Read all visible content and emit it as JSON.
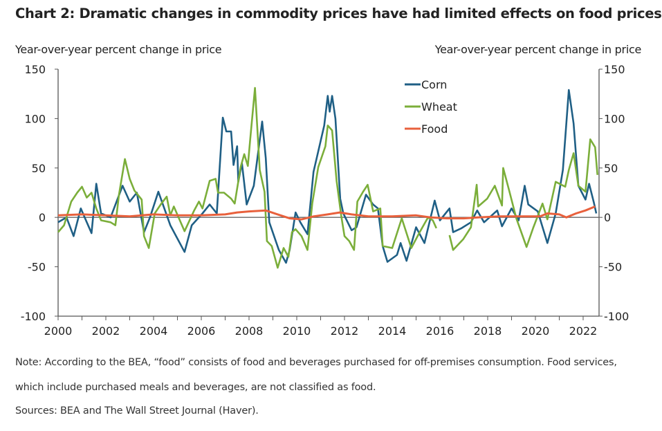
{
  "chart_data": {
    "type": "line",
    "title": "Chart 2: Dramatic changes in commodity prices have had limited effects on food prices",
    "ylabel_left": "Year-over-year percent change in price",
    "ylabel_right": "Year-over-year percent change in price",
    "xlabel": "",
    "ylim": [
      -100,
      150
    ],
    "yticks": [
      150,
      100,
      50,
      0,
      -50,
      -100
    ],
    "ytick_labels": [
      "150",
      "100",
      "50",
      "0",
      "-50",
      "-100"
    ],
    "xlim": [
      2000,
      2022.7
    ],
    "xtick_labels": [
      "2000",
      "2002",
      "2004",
      "2006",
      "2008",
      "2010",
      "2012",
      "2014",
      "2016",
      "2018",
      "2020",
      "2022"
    ],
    "legend_position": "top-center",
    "grid": false,
    "series": [
      {
        "name": "Corn",
        "color": "#1f5f85",
        "points": [
          [
            2000.0,
            -5
          ],
          [
            2000.35,
            0
          ],
          [
            2000.65,
            -19
          ],
          [
            2000.95,
            9
          ],
          [
            2001.4,
            -16
          ],
          [
            2001.6,
            34
          ],
          [
            2001.8,
            4
          ],
          [
            2002.2,
            0
          ],
          [
            2002.7,
            32
          ],
          [
            2003.0,
            16
          ],
          [
            2003.3,
            25
          ],
          [
            2003.6,
            -15
          ],
          [
            2003.85,
            0
          ],
          [
            2004.2,
            26
          ],
          [
            2004.7,
            -8
          ],
          [
            2005.3,
            -35
          ],
          [
            2005.6,
            -8
          ],
          [
            2006.05,
            4
          ],
          [
            2006.35,
            13
          ],
          [
            2006.65,
            4
          ],
          [
            2006.9,
            101
          ],
          [
            2007.05,
            87
          ],
          [
            2007.25,
            87
          ],
          [
            2007.35,
            53
          ],
          [
            2007.5,
            72
          ],
          [
            2007.55,
            36
          ],
          [
            2007.7,
            55
          ],
          [
            2007.9,
            13
          ],
          [
            2008.2,
            32
          ],
          [
            2008.55,
            97
          ],
          [
            2008.7,
            60
          ],
          [
            2008.85,
            -5
          ],
          [
            2009.25,
            -33
          ],
          [
            2009.55,
            -46
          ],
          [
            2009.7,
            -33
          ],
          [
            2009.95,
            5
          ],
          [
            2010.15,
            -5
          ],
          [
            2010.45,
            -17
          ],
          [
            2010.7,
            46
          ],
          [
            2011.15,
            93
          ],
          [
            2011.3,
            123
          ],
          [
            2011.38,
            107
          ],
          [
            2011.48,
            123
          ],
          [
            2011.62,
            100
          ],
          [
            2011.82,
            19
          ],
          [
            2011.95,
            4
          ],
          [
            2012.3,
            -13
          ],
          [
            2012.5,
            -10
          ],
          [
            2012.9,
            23
          ],
          [
            2013.2,
            13
          ],
          [
            2013.4,
            9
          ],
          [
            2013.6,
            -29
          ],
          [
            2013.8,
            -45
          ],
          [
            2014.2,
            -38
          ],
          [
            2014.35,
            -26
          ],
          [
            2014.6,
            -44
          ],
          [
            2015.0,
            -10
          ],
          [
            2015.35,
            -26
          ],
          [
            2015.78,
            17
          ],
          [
            2016.0,
            -3
          ],
          [
            2016.4,
            9
          ],
          [
            2016.55,
            -15
          ],
          [
            2016.9,
            -11
          ],
          [
            2017.3,
            -5
          ],
          [
            2017.56,
            7
          ],
          [
            2017.85,
            -5
          ],
          [
            2018.4,
            7
          ],
          [
            2018.6,
            -9
          ],
          [
            2019.0,
            9
          ],
          [
            2019.3,
            -3
          ],
          [
            2019.55,
            32
          ],
          [
            2019.7,
            13
          ],
          [
            2020.1,
            6
          ],
          [
            2020.5,
            -26
          ],
          [
            2020.85,
            4
          ],
          [
            2021.15,
            48
          ],
          [
            2021.4,
            129
          ],
          [
            2021.6,
            95
          ],
          [
            2021.8,
            32
          ],
          [
            2022.1,
            18
          ],
          [
            2022.25,
            34
          ],
          [
            2022.45,
            15
          ],
          [
            2022.55,
            4
          ]
        ]
      },
      {
        "name": "Wheat",
        "color": "#7bae3a",
        "points": [
          [
            2000.0,
            -15
          ],
          [
            2000.25,
            -8
          ],
          [
            2000.55,
            16
          ],
          [
            2000.8,
            25
          ],
          [
            2001.0,
            31
          ],
          [
            2001.2,
            20
          ],
          [
            2001.4,
            25
          ],
          [
            2001.6,
            9
          ],
          [
            2001.8,
            -3
          ],
          [
            2002.2,
            -5
          ],
          [
            2002.4,
            -8
          ],
          [
            2002.55,
            23
          ],
          [
            2002.8,
            59
          ],
          [
            2003.0,
            39
          ],
          [
            2003.2,
            27
          ],
          [
            2003.5,
            18
          ],
          [
            2003.6,
            -19
          ],
          [
            2003.8,
            -31
          ],
          [
            2004.05,
            4
          ],
          [
            2004.3,
            13
          ],
          [
            2004.55,
            21
          ],
          [
            2004.7,
            2
          ],
          [
            2004.85,
            11
          ],
          [
            2005.3,
            -14
          ],
          [
            2005.7,
            7
          ],
          [
            2005.9,
            16
          ],
          [
            2006.05,
            9
          ],
          [
            2006.35,
            37
          ],
          [
            2006.6,
            39
          ],
          [
            2006.7,
            25
          ],
          [
            2006.95,
            25
          ],
          [
            2007.25,
            19
          ],
          [
            2007.4,
            14
          ],
          [
            2007.65,
            51
          ],
          [
            2007.8,
            64
          ],
          [
            2007.95,
            52
          ],
          [
            2008.05,
            79
          ],
          [
            2008.25,
            131
          ],
          [
            2008.45,
            48
          ],
          [
            2008.65,
            26
          ],
          [
            2008.75,
            -24
          ],
          [
            2008.95,
            -29
          ],
          [
            2009.2,
            -51
          ],
          [
            2009.45,
            -31
          ],
          [
            2009.65,
            -40
          ],
          [
            2009.8,
            -15
          ],
          [
            2009.95,
            -12
          ],
          [
            2010.2,
            -19
          ],
          [
            2010.45,
            -33
          ],
          [
            2010.65,
            14
          ],
          [
            2010.9,
            51
          ],
          [
            2011.2,
            72
          ],
          [
            2011.3,
            93
          ],
          [
            2011.48,
            88
          ],
          [
            2011.67,
            37
          ],
          [
            2011.86,
            2
          ],
          [
            2012.0,
            -19
          ],
          [
            2012.2,
            -24
          ],
          [
            2012.4,
            -33
          ],
          [
            2012.54,
            16
          ],
          [
            2012.78,
            26
          ],
          [
            2012.97,
            33
          ],
          [
            2013.2,
            6
          ],
          [
            2013.5,
            9
          ],
          [
            2013.6,
            -29
          ],
          [
            2014.0,
            -31
          ],
          [
            2014.4,
            -1
          ],
          [
            2014.8,
            -31
          ],
          [
            2015.15,
            -15
          ],
          [
            2015.5,
            0
          ],
          [
            2015.7,
            -3
          ],
          [
            2015.85,
            -11
          ],
          null,
          [
            2016.4,
            -18
          ],
          [
            2016.55,
            -33
          ],
          [
            2016.98,
            -22
          ],
          [
            2017.3,
            -10
          ],
          [
            2017.54,
            33
          ],
          [
            2017.6,
            11
          ],
          [
            2017.98,
            19
          ],
          [
            2018.3,
            32
          ],
          [
            2018.6,
            12
          ],
          [
            2018.65,
            50
          ],
          [
            2018.9,
            27
          ],
          [
            2019.2,
            -1
          ],
          [
            2019.63,
            -30
          ],
          [
            2019.9,
            -11
          ],
          [
            2020.3,
            14
          ],
          [
            2020.5,
            -2
          ],
          [
            2020.85,
            36
          ],
          [
            2021.25,
            31
          ],
          [
            2021.4,
            48
          ],
          [
            2021.6,
            65
          ],
          [
            2021.8,
            32
          ],
          [
            2022.1,
            26
          ],
          [
            2022.3,
            79
          ],
          [
            2022.5,
            71
          ],
          [
            2022.6,
            43
          ]
        ]
      },
      {
        "name": "Food",
        "color": "#e8603c",
        "points": [
          [
            2000.0,
            2
          ],
          [
            2001.0,
            3
          ],
          [
            2002.0,
            2
          ],
          [
            2003.0,
            1
          ],
          [
            2004.0,
            3
          ],
          [
            2005.0,
            2
          ],
          [
            2006.0,
            2
          ],
          [
            2007.0,
            3
          ],
          [
            2007.5,
            5
          ],
          [
            2008.0,
            6
          ],
          [
            2008.7,
            7
          ],
          [
            2009.2,
            3
          ],
          [
            2009.7,
            -1
          ],
          [
            2010.2,
            -2
          ],
          [
            2010.7,
            1
          ],
          [
            2011.3,
            3
          ],
          [
            2011.8,
            5
          ],
          [
            2012.3,
            3
          ],
          [
            2013.0,
            1
          ],
          [
            2014.0,
            1
          ],
          [
            2015.0,
            2
          ],
          [
            2015.6,
            0
          ],
          [
            2016.3,
            -1
          ],
          [
            2017.0,
            -1
          ],
          [
            2017.6,
            0
          ],
          [
            2018.5,
            1
          ],
          [
            2019.5,
            1
          ],
          [
            2020.2,
            1
          ],
          [
            2020.5,
            4
          ],
          [
            2021.0,
            3
          ],
          [
            2021.3,
            0
          ],
          [
            2021.7,
            4
          ],
          [
            2022.1,
            7
          ],
          [
            2022.5,
            11
          ]
        ]
      }
    ]
  },
  "notes": {
    "line1": "Note: According to the BEA, “food” consists of food and beverages purchased for off-premises consumption. Food services,",
    "line2": "which include purchased meals and beverages, are not classified as food.",
    "sources": "Sources: BEA and The Wall Street Journal (Haver)."
  }
}
